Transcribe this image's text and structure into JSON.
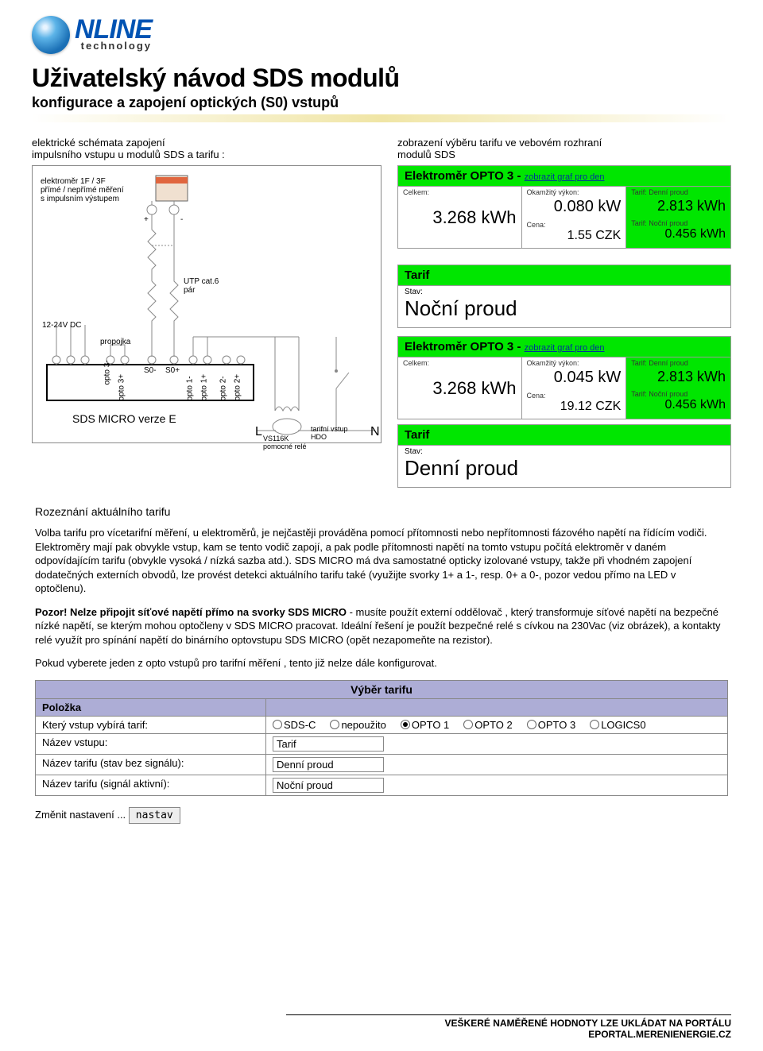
{
  "logo": {
    "main": "NLINE",
    "sub": "technology"
  },
  "title": "Uživatelský návod SDS modulů",
  "subtitle": "konfigurace a zapojení optických (S0) vstupů",
  "left_label": "elektrické schémata zapojení\nimpulsního vstupu u modulů SDS a tarifu :",
  "right_label": "zobrazení výběru tarifu ve vebovém rozhraní\nmodulů SDS",
  "schematic": {
    "meter_text": "elektroměr 1F / 3F\npřímé / nepřímé měření\ns impulsním výstupem",
    "plus": "+",
    "minus": "-",
    "utp": "UTP cat.6\npár",
    "dc": "12-24V DC",
    "propojka": "propojka",
    "terminals": [
      "opto 3-",
      "opto 3+",
      "S0-",
      "S0+",
      "opto 1-",
      "opto 1+",
      "opto 2-",
      "opto 2+"
    ],
    "device": "SDS MICRO verze E",
    "relay": "VS116K\npomocné relé",
    "L": "L",
    "N": "N",
    "hdo": "tarifní vstup\nHDO"
  },
  "meters": [
    {
      "title": "Elektroměr OPTO 3",
      "link": "zobrazit graf pro den",
      "labels": {
        "celkem": "Celkem:",
        "okam": "Okamžitý výkon:",
        "denni": "Tarif: Denní proud",
        "cena": "Cena:",
        "nocni": "Tarif: Noční proud"
      },
      "celkem": "3.268 kWh",
      "okam": "0.080 kW",
      "denni": "2.813 kWh",
      "cena": "1.55 CZK",
      "nocni": "0.456 kWh",
      "tarif_label": "Tarif",
      "stav": "Stav:",
      "tarif": "Noční proud"
    },
    {
      "title": "Elektroměr OPTO 3",
      "link": "zobrazit graf pro den",
      "labels": {
        "celkem": "Celkem:",
        "okam": "Okamžitý výkon:",
        "denni": "Tarif: Denní proud",
        "cena": "Cena:",
        "nocni": "Tarif: Noční proud"
      },
      "celkem": "3.268 kWh",
      "okam": "0.045 kW",
      "denni": "2.813 kWh",
      "cena": "19.12 CZK",
      "nocni": "0.456 kWh",
      "tarif_label": "Tarif",
      "stav": "Stav:",
      "tarif": "Denní proud"
    }
  ],
  "section_title": "Rozeznání aktuálního tarifu",
  "paragraphs": {
    "p1": "Volba tarifu pro vícetarifní měření, u elektroměrů, je nejčastěji prováděna pomocí přítomnosti nebo nepřítomnosti fázového napětí na řídícím vodiči. Elektroměry mají pak obvykle vstup, kam se tento vodič zapojí, a pak podle přítomnosti napětí na tomto vstupu počítá elektroměr v daném odpovídajícím tarifu (obvykle vysoká / nízká sazba atd.). SDS MICRO má dva samostatné opticky izolované vstupy, takže při vhodném zapojení dodatečných externích obvodů, lze provést detekci aktuálního tarifu také (využijte svorky 1+ a 1-, resp. 0+ a 0-, pozor vedou přímo na LED v optočlenu).",
    "p2_bold": "Pozor! Nelze  připojit síťové napětí přímo na svorky SDS MICRO",
    "p2_rest": " - musíte použít externí oddělovač , který transformuje síťové napětí na bezpečné nízké napětí, se kterým mohou optočleny v SDS MICRO pracovat. Ideální řešení je použít bezpečné relé s cívkou na 230Vac (viz obrázek), a kontakty relé využít pro spínání napětí do binárního optovstupu SDS MICRO (opět nezapomeňte na rezistor).",
    "p3": "Pokud vyberete jeden z opto vstupů pro tarifní měření , tento již nelze dále konfigurovat."
  },
  "config": {
    "title": "Výběr tarifu",
    "col1_header": "Položka",
    "rows": [
      {
        "label": "Který vstup vybírá tarif:",
        "type": "radio",
        "options": [
          "SDS-C",
          "nepoužito",
          "OPTO 1",
          "OPTO 2",
          "OPTO 3",
          "LOGICS0"
        ],
        "selected": 2
      },
      {
        "label": "Název vstupu:",
        "type": "text",
        "value": "Tarif"
      },
      {
        "label": "Název tarifu (stav bez signálu):",
        "type": "text",
        "value": "Denní proud"
      },
      {
        "label": "Název tarifu (signál aktivní):",
        "type": "text",
        "value": "Noční proud"
      }
    ],
    "submit_label": "Změnit nastavení ...",
    "submit_btn": "nastav"
  },
  "footer": {
    "line1": "VEŠKERÉ NAMĚŘENÉ HODNOTY LZE UKLÁDAT NA PORTÁLU",
    "line2": "EPORTAL.MERENIENERGIE.CZ"
  },
  "colors": {
    "green": "#00e600",
    "panel_border": "#999",
    "purple": "#adadd6"
  }
}
